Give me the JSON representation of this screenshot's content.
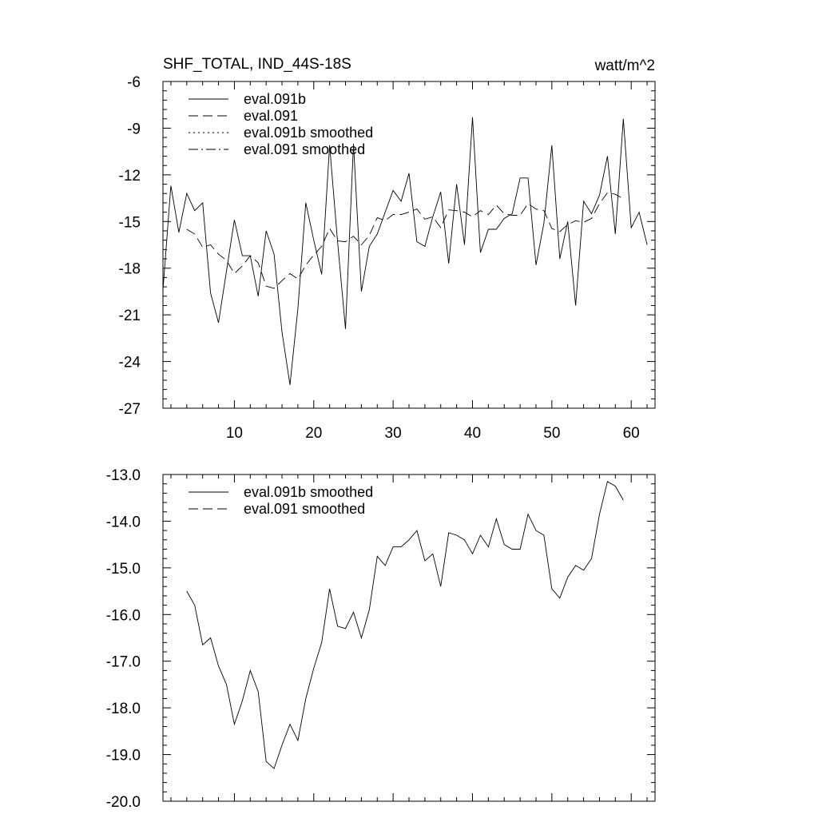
{
  "chart_data": [
    {
      "type": "line",
      "title": "SHF_TOTAL, IND_44S-18S",
      "units": "watt/m^2",
      "xlim": [
        1,
        63
      ],
      "ylim": [
        -27,
        -6
      ],
      "xticks": [
        10,
        20,
        30,
        40,
        50,
        60
      ],
      "yticks": [
        -6,
        -9,
        -12,
        -15,
        -18,
        -21,
        -24,
        -27
      ],
      "legend_position": "top-left",
      "grid": false,
      "series": [
        {
          "name": "eval.091b",
          "style": "solid",
          "x": [
            1,
            2,
            3,
            4,
            5,
            6,
            7,
            8,
            9,
            10,
            11,
            12,
            13,
            14,
            15,
            16,
            17,
            18,
            19,
            20,
            21,
            22,
            23,
            24,
            25,
            26,
            27,
            28,
            29,
            30,
            31,
            32,
            33,
            34,
            35,
            36,
            37,
            38,
            39,
            40,
            41,
            42,
            43,
            44,
            45,
            46,
            47,
            48,
            49,
            50,
            51,
            52,
            53,
            54,
            55,
            56,
            57,
            58,
            59,
            60,
            61,
            62
          ],
          "y": [
            -19.4,
            -12.7,
            -15.7,
            -13.2,
            -14.3,
            -13.8,
            -19.6,
            -21.5,
            -18.2,
            -14.9,
            -17.2,
            -17.2,
            -19.8,
            -15.6,
            -17.1,
            -22.1,
            -25.5,
            -20.6,
            -13.8,
            -16.2,
            -18.4,
            -10.1,
            -16.3,
            -21.9,
            -10.0,
            -19.5,
            -16.6,
            -15.8,
            -14.4,
            -13.0,
            -13.7,
            -11.9,
            -16.3,
            -16.6,
            -14.7,
            -13.1,
            -17.7,
            -12.6,
            -16.5,
            -8.3,
            -17.0,
            -15.5,
            -15.5,
            -14.8,
            -14.5,
            -12.2,
            -12.2,
            -17.8,
            -15.1,
            -10.1,
            -17.4,
            -15.0,
            -20.4,
            -13.7,
            -14.5,
            -13.3,
            -10.8,
            -15.8,
            -8.4,
            -15.4,
            -14.4,
            -16.5
          ]
        },
        {
          "name": "eval.091",
          "style": "dashed",
          "x": [
            4,
            5,
            6,
            7,
            8,
            9,
            10,
            11,
            12,
            13,
            14,
            15,
            16,
            17,
            18,
            19,
            20,
            21,
            22,
            23,
            24,
            25,
            26,
            27,
            28,
            29,
            30,
            31,
            32,
            33,
            34,
            35,
            36,
            37,
            38,
            39,
            40,
            41,
            42,
            43,
            44,
            45,
            46,
            47,
            48,
            49,
            50,
            51,
            52,
            53,
            54,
            55,
            56,
            57,
            58,
            59
          ],
          "y": [
            -15.5,
            -15.8,
            -16.65,
            -16.5,
            -17.1,
            -17.5,
            -18.35,
            -17.85,
            -17.2,
            -17.65,
            -19.15,
            -19.3,
            -18.8,
            -18.35,
            -18.7,
            -17.8,
            -17.15,
            -16.6,
            -15.45,
            -16.25,
            -16.3,
            -15.95,
            -16.5,
            -15.9,
            -14.75,
            -14.95,
            -14.55,
            -14.55,
            -14.4,
            -14.2,
            -14.85,
            -14.7,
            -15.4,
            -14.25,
            -14.3,
            -14.4,
            -14.7,
            -14.3,
            -14.55,
            -13.95,
            -14.5,
            -14.6,
            -14.6,
            -13.85,
            -14.2,
            -14.3,
            -15.45,
            -15.65,
            -15.2,
            -14.95,
            -15.05,
            -14.8,
            -13.85,
            -13.15,
            -13.25,
            -13.55
          ]
        },
        {
          "name": "eval.091b smoothed",
          "style": "dotted",
          "x": [],
          "y": []
        },
        {
          "name": "eval.091 smoothed",
          "style": "dashdot",
          "x": [],
          "y": []
        }
      ]
    },
    {
      "type": "line",
      "title": "",
      "xlim": [
        1,
        63
      ],
      "ylim": [
        -20.0,
        -13.0
      ],
      "xticks": [
        10,
        20,
        30,
        40,
        50,
        60
      ],
      "yticks": [
        "-13.0",
        "-14.0",
        "-15.0",
        "-16.0",
        "-17.0",
        "-18.0",
        "-19.0",
        "-20.0"
      ],
      "legend_position": "top-left",
      "grid": false,
      "series": [
        {
          "name": "eval.091b smoothed",
          "style": "solid",
          "x": [
            4,
            5,
            6,
            7,
            8,
            9,
            10,
            11,
            12,
            13,
            14,
            15,
            16,
            17,
            18,
            19,
            20,
            21,
            22,
            23,
            24,
            25,
            26,
            27,
            28,
            29,
            30,
            31,
            32,
            33,
            34,
            35,
            36,
            37,
            38,
            39,
            40,
            41,
            42,
            43,
            44,
            45,
            46,
            47,
            48,
            49,
            50,
            51,
            52,
            53,
            54,
            55,
            56,
            57,
            58,
            59
          ],
          "y": [
            -15.5,
            -15.8,
            -16.65,
            -16.5,
            -17.1,
            -17.5,
            -18.35,
            -17.85,
            -17.2,
            -17.65,
            -19.15,
            -19.3,
            -18.8,
            -18.35,
            -18.7,
            -17.8,
            -17.15,
            -16.6,
            -15.45,
            -16.25,
            -16.3,
            -15.95,
            -16.5,
            -15.9,
            -14.75,
            -14.95,
            -14.55,
            -14.55,
            -14.4,
            -14.2,
            -14.85,
            -14.7,
            -15.4,
            -14.25,
            -14.3,
            -14.4,
            -14.7,
            -14.3,
            -14.55,
            -13.95,
            -14.5,
            -14.6,
            -14.6,
            -13.85,
            -14.2,
            -14.3,
            -15.45,
            -15.65,
            -15.2,
            -14.95,
            -15.05,
            -14.8,
            -13.85,
            -13.15,
            -13.25,
            -13.55
          ]
        },
        {
          "name": "eval.091 smoothed",
          "style": "dashed",
          "x": [],
          "y": []
        }
      ]
    }
  ]
}
